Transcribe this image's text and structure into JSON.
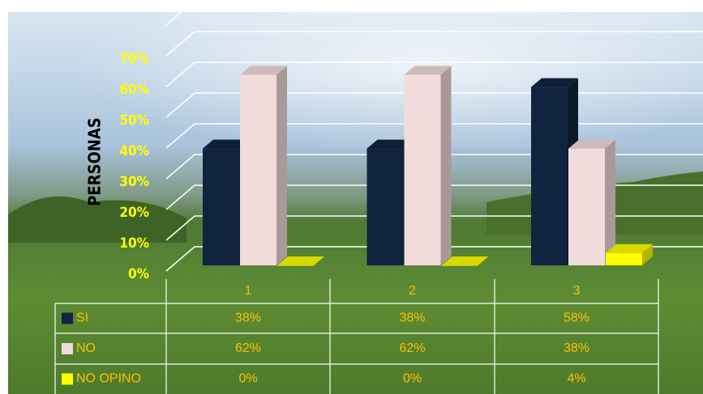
{
  "chart_data": {
    "type": "bar3d",
    "y_label": "PERSONAS",
    "categories": [
      "1",
      "2",
      "3"
    ],
    "series": [
      {
        "name": "SI",
        "color": "#10233f",
        "values": [
          38,
          38,
          58
        ],
        "value_labels": [
          "38%",
          "38%",
          "58%"
        ]
      },
      {
        "name": "NO",
        "color": "#f2dcdb",
        "values": [
          62,
          62,
          38
        ],
        "value_labels": [
          "62%",
          "62%",
          "38%"
        ]
      },
      {
        "name": "NO OPINO",
        "color": "#ffff00",
        "values": [
          0,
          0,
          4
        ],
        "value_labels": [
          "0%",
          "0%",
          "4%"
        ]
      }
    ],
    "ylim": [
      0,
      80
    ],
    "yticks": [
      {
        "value": 0,
        "label": "0%"
      },
      {
        "value": 10,
        "label": "10%"
      },
      {
        "value": 20,
        "label": "20%"
      },
      {
        "value": 30,
        "label": "30%"
      },
      {
        "value": 40,
        "label": "40%"
      },
      {
        "value": 50,
        "label": "50%"
      },
      {
        "value": 60,
        "label": "60%"
      },
      {
        "value": 70,
        "label": "70%"
      }
    ],
    "grid": true
  }
}
